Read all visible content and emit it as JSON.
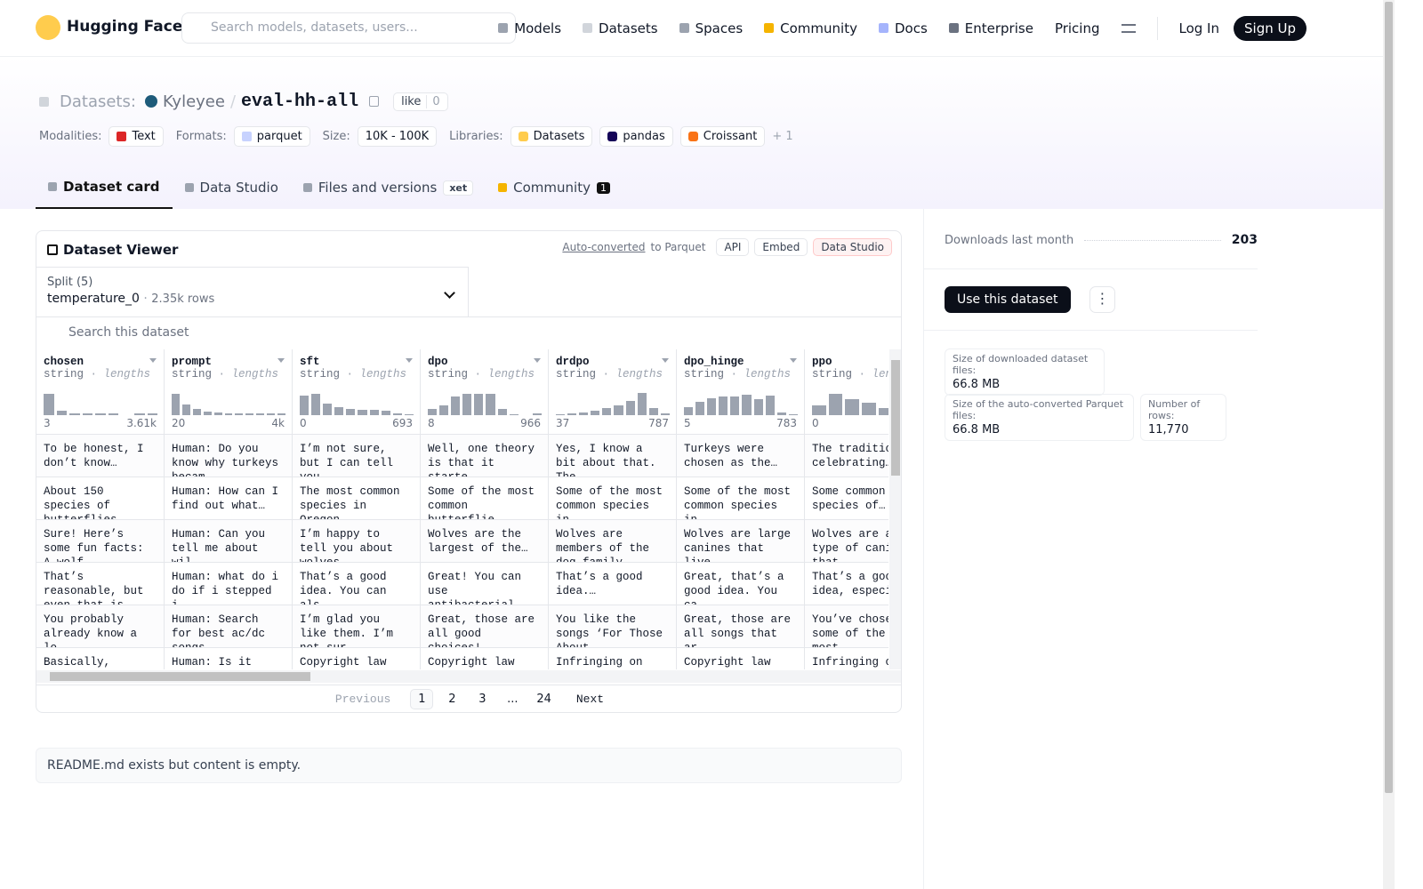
{
  "header": {
    "logo": "Hugging Face",
    "search_placeholder": "Search models, datasets, users...",
    "nav": [
      "Models",
      "Datasets",
      "Spaces",
      "Community",
      "Docs",
      "Enterprise",
      "Pricing"
    ],
    "login": "Log In",
    "signup": "Sign Up"
  },
  "repo": {
    "kind": "Datasets:",
    "owner": "Kyleyee",
    "separator": "/",
    "name": "eval-hh-all",
    "like": "like",
    "likes": 0
  },
  "meta": {
    "modalities_label": "Modalities:",
    "modality": "Text",
    "formats_label": "Formats:",
    "format": "parquet",
    "size_label": "Size:",
    "size": "10K - 100K",
    "libraries_label": "Libraries:",
    "libraries": [
      "Datasets",
      "pandas",
      "Croissant"
    ],
    "more_libraries": "+ 1"
  },
  "tabs": {
    "items": [
      "Dataset card",
      "Data Studio",
      "Files and versions",
      "Community"
    ],
    "xet": "xet",
    "community_count": 1
  },
  "viewer": {
    "title": "Dataset Viewer",
    "auto_converted": "Auto-converted",
    "to_parquet": "to Parquet",
    "buttons": [
      "API",
      "Embed",
      "Data Studio"
    ],
    "split_label": "Split (5)",
    "split": "temperature_0",
    "split_rows": "2.35k rows",
    "search_placeholder": "Search this dataset",
    "columns": [
      {
        "name": "chosen",
        "type": "string",
        "stat": "lengths",
        "min": 3,
        "max": "3.61k",
        "hist": [
          24,
          5,
          2,
          2,
          2,
          2,
          0,
          2,
          2
        ]
      },
      {
        "name": "prompt",
        "type": "string",
        "stat": "lengths",
        "min": 20,
        "max": "4k",
        "hist": [
          24,
          12,
          7,
          4,
          3,
          2,
          2,
          2,
          2,
          2,
          2
        ]
      },
      {
        "name": "sft",
        "type": "string",
        "stat": "lengths",
        "min": 0,
        "max": 693,
        "hist": [
          22,
          24,
          13,
          9,
          7,
          6,
          6,
          5,
          2,
          1
        ]
      },
      {
        "name": "dpo",
        "type": "string",
        "stat": "lengths",
        "min": 8,
        "max": 966,
        "hist": [
          7,
          11,
          21,
          24,
          24,
          24,
          7,
          1,
          0,
          2
        ]
      },
      {
        "name": "drdpo",
        "type": "string",
        "stat": "lengths",
        "min": 37,
        "max": 787,
        "hist": [
          1,
          2,
          3,
          5,
          8,
          11,
          16,
          25,
          8,
          2
        ]
      },
      {
        "name": "dpo_hinge",
        "type": "string",
        "stat": "lengths",
        "min": 5,
        "max": 783,
        "hist": [
          9,
          15,
          19,
          21,
          21,
          23,
          18,
          22,
          3,
          1
        ]
      },
      {
        "name": "ppo",
        "type": "string",
        "stat": "lengths",
        "min": 0,
        "hist": [
          11,
          24,
          18,
          14,
          8,
          5,
          3
        ]
      }
    ],
    "rows": [
      [
        "To be honest, I don’t know…",
        "Human: Do you know why turkeys becam…",
        "I’m not sure, but I can tell you…",
        "Well, one theory is that it starte…",
        "Yes, I know a bit about that. The…",
        "Turkeys were chosen as the…",
        "The tradition of celebrating…"
      ],
      [
        "About 150 species of butterflies…",
        "Human: How can I find out what…",
        "The most common species in Oregon…",
        "Some of the most common butterflie…",
        "Some of the most common species in…",
        "Some of the most common species in…",
        "Some common species of…"
      ],
      [
        "Sure! Here’s some fun facts: A wolf…",
        "Human: Can you tell me about wil…",
        "I’m happy to tell you about wolves.…",
        "Wolves are the largest of the…",
        "Wolves are members of the dog family…",
        "Wolves are large canines that live…",
        "Wolves are a type of canine that…"
      ],
      [
        "That’s reasonable, but even that is…",
        "Human: what do i do if i stepped i…",
        "That’s a good idea. You can als…",
        "Great! You can use antibacterial soa…",
        "That’s a good idea.…",
        "Great, that’s a good idea. You ca…",
        "That’s a good idea, especia…"
      ],
      [
        "You probably already know a lo…",
        "Human: Search for best ac/dc songs.…",
        "I’m glad you like them. I’m not sur…",
        "Great, those are all good choices!…",
        "You like the songs ‘For Those About…",
        "Great, those are all songs that ar…",
        "You’ve chosen some of the most…"
      ],
      [
        "Basically,",
        "Human: Is it",
        "Copyright law",
        "Copyright law",
        "Infringing on",
        "Copyright law",
        "Infringing on"
      ]
    ],
    "pagination": {
      "previous": "Previous",
      "pages": [
        1,
        2,
        3,
        "...",
        24
      ],
      "next": "Next"
    }
  },
  "readme": "README.md exists but content is empty.",
  "sidebar": {
    "downloads_label": "Downloads last month",
    "downloads": 203,
    "use_dataset": "Use this dataset",
    "download_size_label": "Size of downloaded dataset files:",
    "download_size": "66.8 MB",
    "parquet_size_label": "Size of the auto-converted Parquet files:",
    "parquet_size": "66.8 MB",
    "rows_label": "Number of rows:",
    "rows": "11,770"
  }
}
